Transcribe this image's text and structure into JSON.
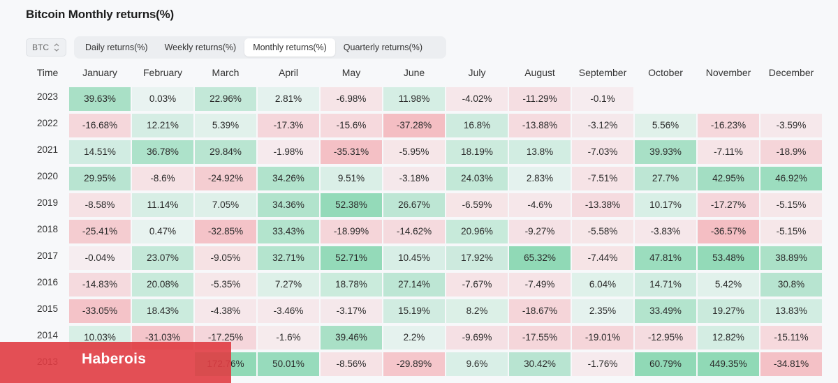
{
  "title": "Bitcoin Monthly returns(%)",
  "asset_select": {
    "value": "BTC"
  },
  "tabs": [
    {
      "label": "Daily returns(%)",
      "active": false
    },
    {
      "label": "Weekly returns(%)",
      "active": false
    },
    {
      "label": "Monthly returns(%)",
      "active": true
    },
    {
      "label": "Quarterly returns(%)",
      "active": false
    }
  ],
  "table": {
    "time_header": "Time",
    "months": [
      "January",
      "February",
      "March",
      "April",
      "May",
      "June",
      "July",
      "August",
      "September",
      "October",
      "November",
      "December"
    ],
    "rows": [
      {
        "year": "2023",
        "values": [
          "39.63%",
          "0.03%",
          "22.96%",
          "2.81%",
          "-6.98%",
          "11.98%",
          "-4.02%",
          "-11.29%",
          "-0.1%",
          "",
          "",
          ""
        ]
      },
      {
        "year": "2022",
        "values": [
          "-16.68%",
          "12.21%",
          "5.39%",
          "-17.3%",
          "-15.6%",
          "-37.28%",
          "16.8%",
          "-13.88%",
          "-3.12%",
          "5.56%",
          "-16.23%",
          "-3.59%"
        ]
      },
      {
        "year": "2021",
        "values": [
          "14.51%",
          "36.78%",
          "29.84%",
          "-1.98%",
          "-35.31%",
          "-5.95%",
          "18.19%",
          "13.8%",
          "-7.03%",
          "39.93%",
          "-7.11%",
          "-18.9%"
        ]
      },
      {
        "year": "2020",
        "values": [
          "29.95%",
          "-8.6%",
          "-24.92%",
          "34.26%",
          "9.51%",
          "-3.18%",
          "24.03%",
          "2.83%",
          "-7.51%",
          "27.7%",
          "42.95%",
          "46.92%"
        ]
      },
      {
        "year": "2019",
        "values": [
          "-8.58%",
          "11.14%",
          "7.05%",
          "34.36%",
          "52.38%",
          "26.67%",
          "-6.59%",
          "-4.6%",
          "-13.38%",
          "10.17%",
          "-17.27%",
          "-5.15%"
        ]
      },
      {
        "year": "2018",
        "values": [
          "-25.41%",
          "0.47%",
          "-32.85%",
          "33.43%",
          "-18.99%",
          "-14.62%",
          "20.96%",
          "-9.27%",
          "-5.58%",
          "-3.83%",
          "-36.57%",
          "-5.15%"
        ]
      },
      {
        "year": "2017",
        "values": [
          "-0.04%",
          "23.07%",
          "-9.05%",
          "32.71%",
          "52.71%",
          "10.45%",
          "17.92%",
          "65.32%",
          "-7.44%",
          "47.81%",
          "53.48%",
          "38.89%"
        ]
      },
      {
        "year": "2016",
        "values": [
          "-14.83%",
          "20.08%",
          "-5.35%",
          "7.27%",
          "18.78%",
          "27.14%",
          "-7.67%",
          "-7.49%",
          "6.04%",
          "14.71%",
          "5.42%",
          "30.8%"
        ]
      },
      {
        "year": "2015",
        "values": [
          "-33.05%",
          "18.43%",
          "-4.38%",
          "-3.46%",
          "-3.17%",
          "15.19%",
          "8.2%",
          "-18.67%",
          "2.35%",
          "33.49%",
          "19.27%",
          "13.83%"
        ]
      },
      {
        "year": "2014",
        "values": [
          "10.03%",
          "-31.03%",
          "-17.25%",
          "-1.6%",
          "39.46%",
          "2.2%",
          "-9.69%",
          "-17.55%",
          "-19.01%",
          "-12.95%",
          "12.82%",
          "-15.11%"
        ]
      },
      {
        "year": "2013",
        "values": [
          "",
          "",
          "172.76%",
          "50.01%",
          "-8.56%",
          "-29.89%",
          "9.6%",
          "30.42%",
          "-1.76%",
          "60.79%",
          "449.35%",
          "-34.81%"
        ]
      }
    ]
  },
  "colors": {
    "positive": "#4bc489",
    "negative": "#f0717a",
    "banner": "#e03c42"
  },
  "watermark": {
    "text": "Haberois"
  }
}
